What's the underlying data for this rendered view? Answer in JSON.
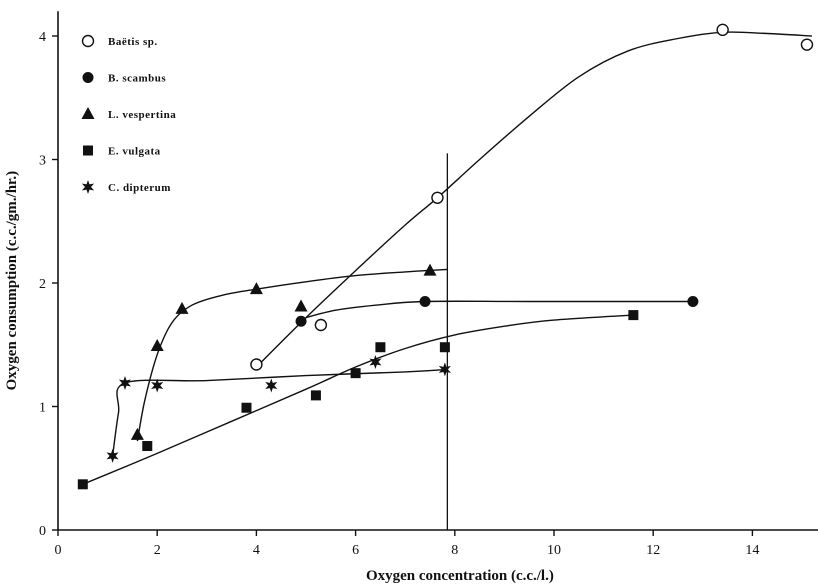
{
  "chart_data": {
    "type": "scatter",
    "xlabel": "Oxygen concentration (c.c./l.)",
    "ylabel": "Oxygen consumption (c.c./gm./hr.)",
    "xlim": [
      0,
      15.4
    ],
    "ylim": [
      0,
      4.2
    ],
    "x_ticks": [
      "0",
      "2",
      "4",
      "6",
      "8",
      "10",
      "12",
      "14"
    ],
    "y_ticks": [
      "0",
      "1",
      "2",
      "3",
      "4"
    ],
    "grid": false,
    "legend_position": "top-left",
    "vertical_reference_line_x": 7.85,
    "series": [
      {
        "name": "Baëtis sp.",
        "marker": "open-circle",
        "points": [
          [
            4.0,
            1.34
          ],
          [
            5.3,
            1.66
          ],
          [
            7.65,
            2.69
          ],
          [
            13.4,
            4.05
          ],
          [
            15.1,
            3.93
          ]
        ],
        "curve": [
          [
            4.0,
            1.32
          ],
          [
            5.0,
            1.72
          ],
          [
            6.0,
            2.1
          ],
          [
            7.0,
            2.47
          ],
          [
            7.65,
            2.69
          ],
          [
            8.5,
            3.0
          ],
          [
            9.5,
            3.35
          ],
          [
            10.5,
            3.67
          ],
          [
            11.5,
            3.88
          ],
          [
            12.5,
            3.98
          ],
          [
            13.4,
            4.03
          ],
          [
            14.3,
            4.02
          ],
          [
            15.2,
            4.0
          ]
        ]
      },
      {
        "name": "B. scambus",
        "marker": "filled-circle",
        "points": [
          [
            4.9,
            1.69
          ],
          [
            7.4,
            1.85
          ],
          [
            12.8,
            1.85
          ]
        ],
        "curve": [
          [
            5.0,
            1.72
          ],
          [
            5.6,
            1.78
          ],
          [
            6.4,
            1.82
          ],
          [
            7.4,
            1.85
          ],
          [
            9.5,
            1.85
          ],
          [
            12.8,
            1.85
          ]
        ]
      },
      {
        "name": "L. vespertina",
        "marker": "filled-triangle",
        "points": [
          [
            1.6,
            0.77
          ],
          [
            2.0,
            1.49
          ],
          [
            2.5,
            1.79
          ],
          [
            4.0,
            1.95
          ],
          [
            4.9,
            1.81
          ],
          [
            7.5,
            2.1
          ]
        ],
        "curve": [
          [
            1.6,
            0.72
          ],
          [
            1.75,
            1.05
          ],
          [
            2.0,
            1.42
          ],
          [
            2.3,
            1.68
          ],
          [
            2.7,
            1.82
          ],
          [
            3.3,
            1.9
          ],
          [
            4.0,
            1.95
          ],
          [
            5.0,
            2.01
          ],
          [
            6.0,
            2.06
          ],
          [
            7.0,
            2.09
          ],
          [
            7.85,
            2.11
          ]
        ]
      },
      {
        "name": "E. vulgata",
        "marker": "filled-square",
        "points": [
          [
            0.5,
            0.37
          ],
          [
            1.8,
            0.68
          ],
          [
            3.8,
            0.99
          ],
          [
            5.2,
            1.09
          ],
          [
            6.0,
            1.27
          ],
          [
            6.5,
            1.48
          ],
          [
            7.8,
            1.48
          ],
          [
            11.6,
            1.74
          ]
        ],
        "curve": [
          [
            0.5,
            0.37
          ],
          [
            2.0,
            0.62
          ],
          [
            3.5,
            0.88
          ],
          [
            5.0,
            1.14
          ],
          [
            6.0,
            1.32
          ],
          [
            7.0,
            1.47
          ],
          [
            8.0,
            1.58
          ],
          [
            9.0,
            1.65
          ],
          [
            10.0,
            1.7
          ],
          [
            11.6,
            1.74
          ]
        ]
      },
      {
        "name": "C. dipterum",
        "marker": "star",
        "points": [
          [
            1.1,
            0.6
          ],
          [
            1.35,
            1.19
          ],
          [
            2.0,
            1.17
          ],
          [
            4.3,
            1.17
          ],
          [
            6.4,
            1.36
          ],
          [
            7.8,
            1.3
          ]
        ],
        "curve": [
          [
            1.1,
            0.6
          ],
          [
            1.22,
            0.95
          ],
          [
            1.35,
            1.19
          ],
          [
            3.0,
            1.21
          ],
          [
            5.0,
            1.25
          ],
          [
            7.0,
            1.28
          ],
          [
            7.85,
            1.3
          ]
        ]
      }
    ]
  },
  "colors": {
    "ink": "#111111",
    "background": "#ffffff"
  }
}
